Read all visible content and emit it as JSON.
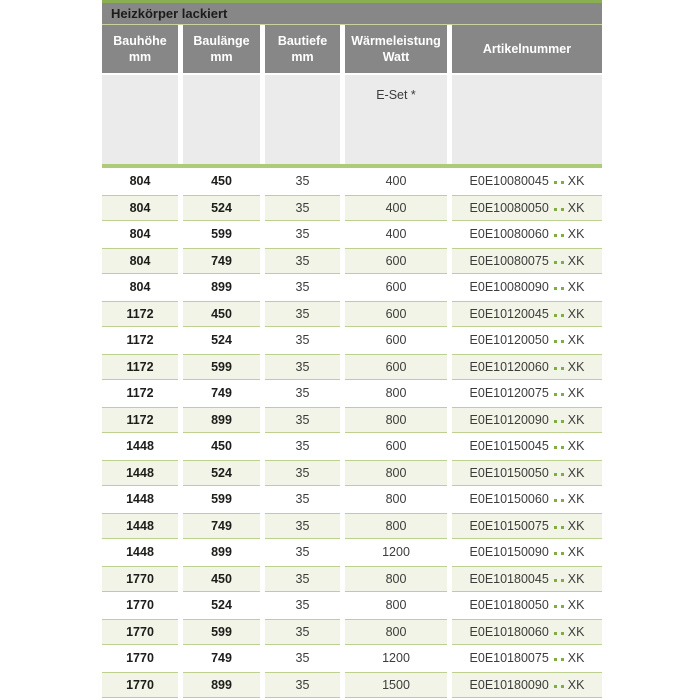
{
  "table": {
    "title": "Heizkörper lackiert",
    "columns": [
      {
        "line1": "Bauhöhe",
        "line2": "mm"
      },
      {
        "line1": "Baulänge",
        "line2": "mm"
      },
      {
        "line1": "Bautiefe",
        "line2": "mm"
      },
      {
        "line1": "Wärmeleistung",
        "line2": "Watt"
      },
      {
        "line1": "Artikelnummer",
        "line2": ""
      }
    ],
    "subheader": {
      "eset_label": "E-Set *"
    },
    "rows": [
      {
        "bauhoehe": "804",
        "baulaenge": "450",
        "bautiefe": "35",
        "watt": "400",
        "artikel": "E0E10080045",
        "artikel_suffix": "XK"
      },
      {
        "bauhoehe": "804",
        "baulaenge": "524",
        "bautiefe": "35",
        "watt": "400",
        "artikel": "E0E10080050",
        "artikel_suffix": "XK"
      },
      {
        "bauhoehe": "804",
        "baulaenge": "599",
        "bautiefe": "35",
        "watt": "400",
        "artikel": "E0E10080060",
        "artikel_suffix": "XK"
      },
      {
        "bauhoehe": "804",
        "baulaenge": "749",
        "bautiefe": "35",
        "watt": "600",
        "artikel": "E0E10080075",
        "artikel_suffix": "XK"
      },
      {
        "bauhoehe": "804",
        "baulaenge": "899",
        "bautiefe": "35",
        "watt": "600",
        "artikel": "E0E10080090",
        "artikel_suffix": "XK"
      },
      {
        "bauhoehe": "1172",
        "baulaenge": "450",
        "bautiefe": "35",
        "watt": "600",
        "artikel": "E0E10120045",
        "artikel_suffix": "XK"
      },
      {
        "bauhoehe": "1172",
        "baulaenge": "524",
        "bautiefe": "35",
        "watt": "600",
        "artikel": "E0E10120050",
        "artikel_suffix": "XK"
      },
      {
        "bauhoehe": "1172",
        "baulaenge": "599",
        "bautiefe": "35",
        "watt": "600",
        "artikel": "E0E10120060",
        "artikel_suffix": "XK"
      },
      {
        "bauhoehe": "1172",
        "baulaenge": "749",
        "bautiefe": "35",
        "watt": "800",
        "artikel": "E0E10120075",
        "artikel_suffix": "XK"
      },
      {
        "bauhoehe": "1172",
        "baulaenge": "899",
        "bautiefe": "35",
        "watt": "800",
        "artikel": "E0E10120090",
        "artikel_suffix": "XK"
      },
      {
        "bauhoehe": "1448",
        "baulaenge": "450",
        "bautiefe": "35",
        "watt": "600",
        "artikel": "E0E10150045",
        "artikel_suffix": "XK"
      },
      {
        "bauhoehe": "1448",
        "baulaenge": "524",
        "bautiefe": "35",
        "watt": "800",
        "artikel": "E0E10150050",
        "artikel_suffix": "XK"
      },
      {
        "bauhoehe": "1448",
        "baulaenge": "599",
        "bautiefe": "35",
        "watt": "800",
        "artikel": "E0E10150060",
        "artikel_suffix": "XK"
      },
      {
        "bauhoehe": "1448",
        "baulaenge": "749",
        "bautiefe": "35",
        "watt": "800",
        "artikel": "E0E10150075",
        "artikel_suffix": "XK"
      },
      {
        "bauhoehe": "1448",
        "baulaenge": "899",
        "bautiefe": "35",
        "watt": "1200",
        "artikel": "E0E10150090",
        "artikel_suffix": "XK"
      },
      {
        "bauhoehe": "1770",
        "baulaenge": "450",
        "bautiefe": "35",
        "watt": "800",
        "artikel": "E0E10180045",
        "artikel_suffix": "XK"
      },
      {
        "bauhoehe": "1770",
        "baulaenge": "524",
        "bautiefe": "35",
        "watt": "800",
        "artikel": "E0E10180050",
        "artikel_suffix": "XK"
      },
      {
        "bauhoehe": "1770",
        "baulaenge": "599",
        "bautiefe": "35",
        "watt": "800",
        "artikel": "E0E10180060",
        "artikel_suffix": "XK"
      },
      {
        "bauhoehe": "1770",
        "baulaenge": "749",
        "bautiefe": "35",
        "watt": "1200",
        "artikel": "E0E10180075",
        "artikel_suffix": "XK"
      },
      {
        "bauhoehe": "1770",
        "baulaenge": "899",
        "bautiefe": "35",
        "watt": "1500",
        "artikel": "E0E10180090",
        "artikel_suffix": "XK"
      }
    ],
    "colors": {
      "top_strip_green": "#8cae52",
      "header_gray": "#878787",
      "header_text": "#ffffff",
      "title_text": "#1c1c1b",
      "title_separator": "#c9d3a0",
      "eset_band_bg": "#ebebeb",
      "separator_green": "#aecc77",
      "row_tint_bg": "#f2f4e7",
      "row_border_green": "#bcd18f",
      "dot_green": "#7fad42",
      "data_text": "#3c3c3b",
      "bold_text": "#1d1d1b"
    }
  }
}
